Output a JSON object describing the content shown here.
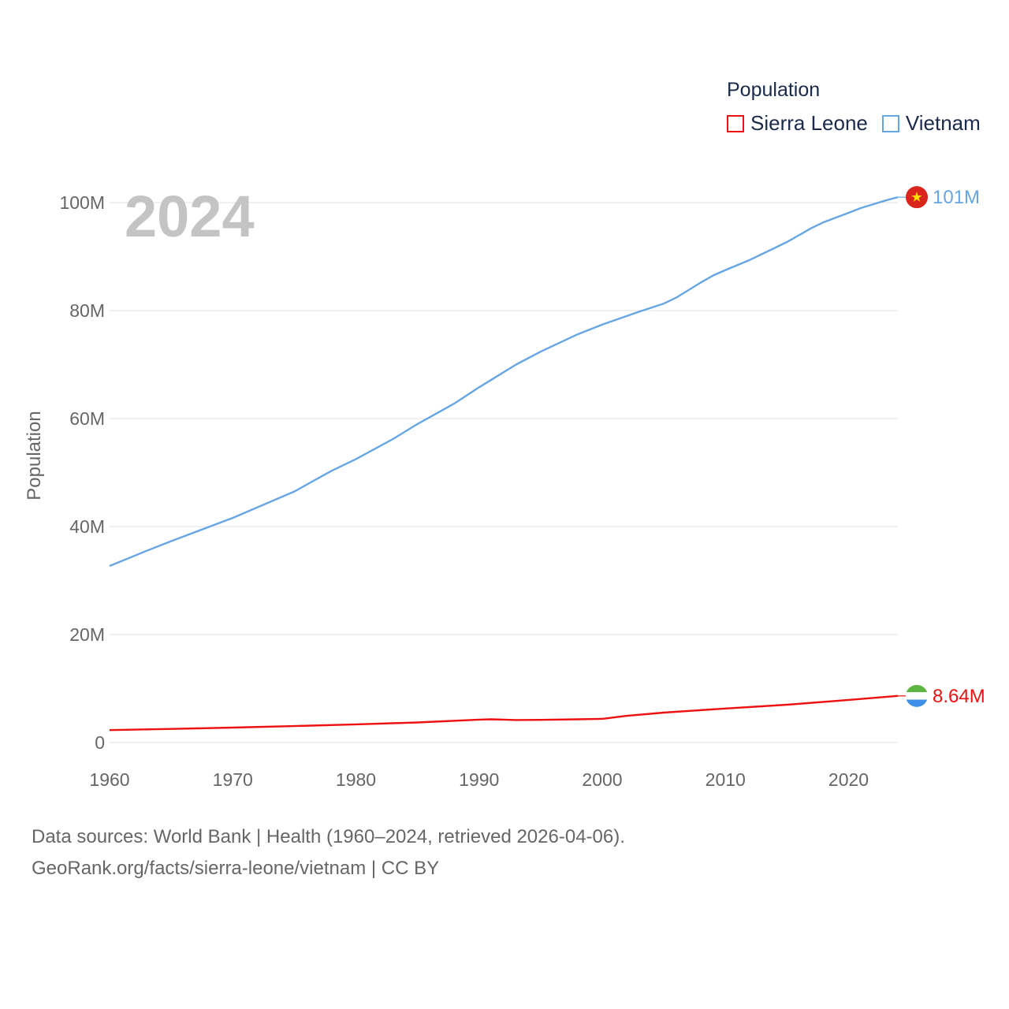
{
  "legend": {
    "title": "Population",
    "items": [
      {
        "name": "Sierra Leone",
        "color": "#ee1111"
      },
      {
        "name": "Vietnam",
        "color": "#67a6e4"
      }
    ]
  },
  "footer": {
    "line1": "Data sources: World Bank | Health (1960–2024, retrieved 2026-04-06).",
    "line2": "GeoRank.org/facts/sierra-leone/vietnam | CC BY"
  },
  "chart_data": {
    "type": "line",
    "title": "Population",
    "year_label": "2024",
    "ylabel": "Population",
    "xlabel": "",
    "xlim": [
      1960,
      2024
    ],
    "ylim": [
      0,
      100000000
    ],
    "grid": true,
    "legend_position": "top-right",
    "x_ticks": [
      1960,
      1970,
      1980,
      1990,
      2000,
      2010,
      2020
    ],
    "x_tick_labels": [
      "1960",
      "1970",
      "1980",
      "1990",
      "2000",
      "2010",
      "2020"
    ],
    "y_ticks": [
      0,
      20000000,
      40000000,
      60000000,
      80000000,
      100000000
    ],
    "y_tick_labels": [
      "0",
      "20M",
      "40M",
      "60M",
      "80M",
      "100M"
    ],
    "series": [
      {
        "name": "Vietnam",
        "color": "#67a6e4",
        "end_label": "101M",
        "x": [
          1960,
          1963,
          1965,
          1970,
          1975,
          1978,
          1980,
          1983,
          1985,
          1988,
          1990,
          1993,
          1995,
          1998,
          2000,
          2003,
          2005,
          2006,
          2008,
          2009,
          2010,
          2012,
          2015,
          2017,
          2018,
          2020,
          2021,
          2022,
          2023,
          2024
        ],
        "y": [
          32700000,
          35500000,
          37300000,
          41600000,
          46500000,
          50300000,
          52500000,
          56200000,
          59000000,
          62800000,
          65800000,
          70000000,
          72400000,
          75600000,
          77400000,
          79800000,
          81300000,
          82400000,
          85200000,
          86500000,
          87500000,
          89400000,
          92700000,
          95300000,
          96400000,
          98100000,
          99000000,
          99700000,
          100400000,
          101000000
        ]
      },
      {
        "name": "Sierra Leone",
        "color": "#ee1111",
        "end_label": "8.64M",
        "x": [
          1960,
          1965,
          1970,
          1975,
          1980,
          1985,
          1990,
          1991,
          1993,
          1995,
          1998,
          2000,
          2002,
          2005,
          2010,
          2015,
          2020,
          2024
        ],
        "y": [
          2300000,
          2520000,
          2780000,
          3050000,
          3370000,
          3720000,
          4250000,
          4300000,
          4180000,
          4200000,
          4300000,
          4400000,
          4950000,
          5550000,
          6300000,
          7000000,
          7900000,
          8640000
        ]
      }
    ]
  }
}
